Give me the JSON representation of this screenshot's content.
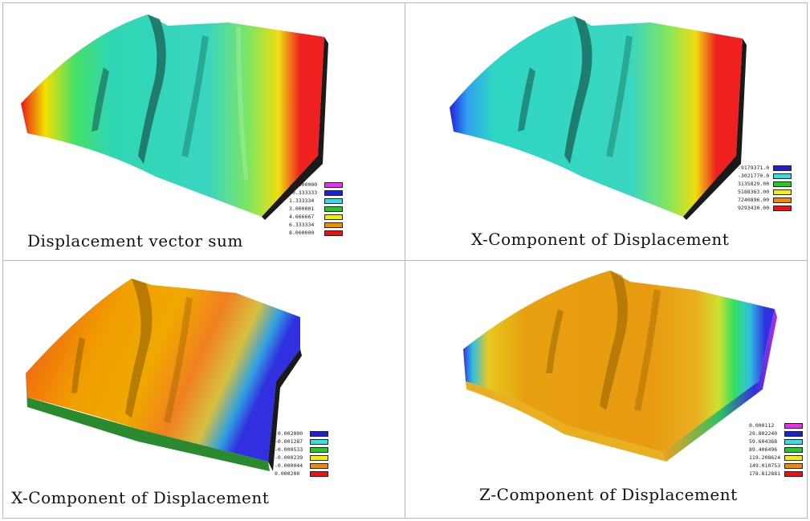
{
  "panels": [
    {
      "caption": "Displacement vector sum",
      "legend": [
        {
          "label": "-2.000000",
          "color": "#f02cf0"
        },
        {
          "label": "-0.333333",
          "color": "#1f1fd6"
        },
        {
          "label": "1.333334",
          "color": "#31e0e0"
        },
        {
          "label": "3.000001",
          "color": "#22cc22"
        },
        {
          "label": "4.666667",
          "color": "#f0f000"
        },
        {
          "label": "6.333334",
          "color": "#f08c00"
        },
        {
          "label": "8.000000",
          "color": "#ee1111"
        }
      ]
    },
    {
      "caption": "X-Component of Displacement",
      "legend": [
        {
          "label": "-9179371.0",
          "color": "#1f1fd6"
        },
        {
          "label": "-3021770.0",
          "color": "#31e0e0"
        },
        {
          "label": "3135829.00",
          "color": "#22cc22"
        },
        {
          "label": "5188363.00",
          "color": "#f0f000"
        },
        {
          "label": "7240896.00",
          "color": "#f08c00"
        },
        {
          "label": "9293430.00",
          "color": "#ee1111"
        }
      ]
    },
    {
      "caption": "X-Component of Displacement",
      "legend": [
        {
          "label": "-0.002000",
          "color": "#1f1fd6"
        },
        {
          "label": "-0.001287",
          "color": "#31e0e0"
        },
        {
          "label": "-0.000533",
          "color": "#22cc22"
        },
        {
          "label": "-0.000239",
          "color": "#f0f000"
        },
        {
          "label": "-0.000044",
          "color": "#f08c00"
        },
        {
          "label": "0.000200",
          "color": "#ee1111"
        }
      ]
    },
    {
      "caption": "Z-Component of Displacement",
      "legend": [
        {
          "label": "0.000112",
          "color": "#f02cf0"
        },
        {
          "label": "29.802240",
          "color": "#1f1fd6"
        },
        {
          "label": "59.604368",
          "color": "#31e0e0"
        },
        {
          "label": "89.406496",
          "color": "#22cc22"
        },
        {
          "label": "119.208624",
          "color": "#f0f000"
        },
        {
          "label": "149.010753",
          "color": "#f08c00"
        },
        {
          "label": "178.812881",
          "color": "#ee1111"
        }
      ]
    }
  ]
}
